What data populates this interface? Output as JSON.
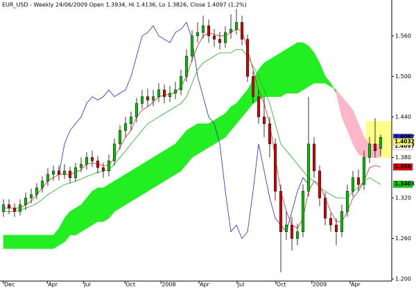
{
  "chart_data": {
    "type": "candlestick",
    "title": "EUR_USD - Weekly 24/06/2009 Open 1.3934, Hi 1.4136, Lo 1.3826, Close 1.4097 (1.2%)",
    "xlim": [
      0,
      68
    ],
    "ylim": [
      1.198,
      1.608
    ],
    "yticks": [
      {
        "value": 1.56,
        "label": "1.560"
      },
      {
        "value": 1.5,
        "label": "1.500"
      },
      {
        "value": 1.44,
        "label": "1.440"
      },
      {
        "value": 1.38,
        "label": "1.380"
      },
      {
        "value": 1.32,
        "label": "1.320"
      },
      {
        "value": 1.26,
        "label": "1.260"
      },
      {
        "value": 1.2,
        "label": "1.200"
      }
    ],
    "xticks": [
      {
        "value": 0,
        "label": "Dec"
      },
      {
        "value": 7.9,
        "label": "Apr"
      },
      {
        "value": 14.4,
        "label": "Jul"
      },
      {
        "value": 21.9,
        "label": "Oct"
      },
      {
        "value": 28.4,
        "label": "2008"
      },
      {
        "value": 35.25,
        "label": "Apr"
      },
      {
        "value": 42.1,
        "label": "Jul"
      },
      {
        "value": 49.1,
        "label": "Oct"
      },
      {
        "value": 55.6,
        "label": "2009"
      },
      {
        "value": 62.5,
        "label": "Apr"
      }
    ],
    "up_color": "#00c800",
    "down_color": "#dd0000",
    "open": [
      1.3,
      1.31,
      1.305,
      1.3,
      1.31,
      1.32,
      1.325,
      1.335,
      1.345,
      1.355,
      1.36,
      1.355,
      1.36,
      1.35,
      1.365,
      1.37,
      1.38,
      1.375,
      1.365,
      1.36,
      1.375,
      1.4,
      1.42,
      1.43,
      1.44,
      1.46,
      1.47,
      1.465,
      1.47,
      1.48,
      1.47,
      1.475,
      1.48,
      1.5,
      1.53,
      1.56,
      1.565,
      1.575,
      1.56,
      1.555,
      1.55,
      1.565,
      1.57,
      1.58,
      1.555,
      1.5,
      1.47,
      1.44,
      1.43,
      1.4,
      1.33,
      1.27,
      1.28,
      1.26,
      1.27,
      1.33,
      1.4,
      1.36,
      1.32,
      1.29,
      1.28,
      1.27,
      1.3,
      1.33,
      1.35,
      1.34,
      1.38,
      1.4,
      1.3934
    ],
    "high": [
      1.318,
      1.318,
      1.312,
      1.318,
      1.328,
      1.334,
      1.342,
      1.352,
      1.364,
      1.368,
      1.368,
      1.37,
      1.366,
      1.372,
      1.38,
      1.388,
      1.39,
      1.382,
      1.372,
      1.384,
      1.408,
      1.428,
      1.44,
      1.448,
      1.468,
      1.48,
      1.482,
      1.48,
      1.49,
      1.488,
      1.486,
      1.492,
      1.51,
      1.54,
      1.568,
      1.58,
      1.59,
      1.584,
      1.57,
      1.566,
      1.574,
      1.592,
      1.6,
      1.59,
      1.562,
      1.508,
      1.48,
      1.47,
      1.44,
      1.408,
      1.34,
      1.3,
      1.292,
      1.282,
      1.34,
      1.47,
      1.41,
      1.368,
      1.328,
      1.298,
      1.29,
      1.31,
      1.34,
      1.36,
      1.362,
      1.39,
      1.41,
      1.438,
      1.4136
    ],
    "low": [
      1.292,
      1.296,
      1.292,
      1.294,
      1.302,
      1.312,
      1.318,
      1.328,
      1.338,
      1.346,
      1.346,
      1.348,
      1.342,
      1.344,
      1.358,
      1.362,
      1.366,
      1.356,
      1.35,
      1.352,
      1.368,
      1.392,
      1.41,
      1.42,
      1.432,
      1.452,
      1.455,
      1.456,
      1.462,
      1.46,
      1.462,
      1.466,
      1.472,
      1.492,
      1.522,
      1.55,
      1.556,
      1.55,
      1.544,
      1.54,
      1.542,
      1.556,
      1.562,
      1.546,
      1.492,
      1.46,
      1.43,
      1.41,
      1.38,
      1.316,
      1.21,
      1.258,
      1.242,
      1.25,
      1.262,
      1.322,
      1.35,
      1.308,
      1.28,
      1.27,
      1.25,
      1.262,
      1.292,
      1.322,
      1.33,
      1.332,
      1.372,
      1.38,
      1.3826
    ],
    "close": [
      1.31,
      1.305,
      1.3,
      1.31,
      1.32,
      1.325,
      1.335,
      1.345,
      1.355,
      1.36,
      1.355,
      1.36,
      1.35,
      1.365,
      1.37,
      1.38,
      1.375,
      1.365,
      1.36,
      1.375,
      1.4,
      1.42,
      1.43,
      1.44,
      1.46,
      1.47,
      1.465,
      1.47,
      1.48,
      1.47,
      1.475,
      1.48,
      1.5,
      1.53,
      1.56,
      1.565,
      1.575,
      1.56,
      1.555,
      1.55,
      1.565,
      1.57,
      1.58,
      1.555,
      1.5,
      1.47,
      1.44,
      1.43,
      1.4,
      1.33,
      1.27,
      1.28,
      1.26,
      1.27,
      1.33,
      1.4,
      1.36,
      1.32,
      1.29,
      1.28,
      1.27,
      1.3,
      1.33,
      1.35,
      1.34,
      1.38,
      1.4,
      1.39,
      1.4097
    ],
    "cloud": {
      "up_color": "#22ee22",
      "down_color": "#ffb6c8",
      "values_a": [
        1.265,
        1.265,
        1.265,
        1.265,
        1.265,
        1.265,
        1.265,
        1.265,
        1.265,
        1.265,
        1.275,
        1.29,
        1.3,
        1.305,
        1.31,
        1.32,
        1.33,
        1.335,
        1.335,
        1.34,
        1.345,
        1.35,
        1.355,
        1.36,
        1.365,
        1.37,
        1.375,
        1.38,
        1.385,
        1.39,
        1.395,
        1.4,
        1.41,
        1.42,
        1.425,
        1.43,
        1.43,
        1.43,
        1.435,
        1.44,
        1.445,
        1.455,
        1.46,
        1.47,
        1.48,
        1.495,
        1.51,
        1.52,
        1.525,
        1.53,
        1.535,
        1.54,
        1.545,
        1.55,
        1.55,
        1.545,
        1.535,
        1.52,
        1.5,
        1.49,
        1.475,
        1.44,
        1.42,
        1.4,
        1.385,
        1.38,
        1.38,
        1.38,
        1.38
      ],
      "values_b": [
        1.245,
        1.245,
        1.245,
        1.245,
        1.245,
        1.245,
        1.245,
        1.245,
        1.245,
        1.245,
        1.25,
        1.255,
        1.265,
        1.265,
        1.27,
        1.275,
        1.28,
        1.285,
        1.285,
        1.29,
        1.3,
        1.305,
        1.31,
        1.315,
        1.32,
        1.325,
        1.33,
        1.335,
        1.34,
        1.345,
        1.35,
        1.355,
        1.36,
        1.37,
        1.38,
        1.385,
        1.39,
        1.395,
        1.4,
        1.405,
        1.41,
        1.42,
        1.43,
        1.44,
        1.45,
        1.46,
        1.465,
        1.47,
        1.47,
        1.47,
        1.47,
        1.475,
        1.475,
        1.475,
        1.48,
        1.485,
        1.49,
        1.49,
        1.49,
        1.485,
        1.48,
        1.47,
        1.46,
        1.45,
        1.43,
        1.41,
        1.4,
        1.4,
        1.4
      ]
    },
    "lines": [
      {
        "color": "#2222cc",
        "values": [
          null,
          null,
          null,
          null,
          null,
          null,
          null,
          null,
          null,
          null,
          1.355,
          1.4,
          1.42,
          1.43,
          1.44,
          1.46,
          1.47,
          1.465,
          1.47,
          1.48,
          1.47,
          1.475,
          1.48,
          1.5,
          1.53,
          1.56,
          1.565,
          1.575,
          1.56,
          1.555,
          1.55,
          1.565,
          1.57,
          1.58,
          1.555,
          1.5,
          1.47,
          1.44,
          1.43,
          1.4,
          1.33,
          1.27,
          1.28,
          1.26,
          1.27,
          1.33,
          1.4,
          1.36,
          1.32,
          1.29,
          1.28,
          1.27,
          1.3,
          1.33,
          1.35,
          1.34,
          null,
          null,
          null,
          null,
          null,
          null,
          null,
          null,
          null,
          null,
          null,
          null,
          null
        ]
      },
      {
        "color": "#dd2222",
        "values": [
          1.305,
          1.305,
          1.305,
          1.305,
          1.31,
          1.315,
          1.325,
          1.335,
          1.345,
          1.35,
          1.355,
          1.355,
          1.355,
          1.358,
          1.362,
          1.37,
          1.372,
          1.37,
          1.368,
          1.368,
          1.38,
          1.395,
          1.41,
          1.42,
          1.44,
          1.45,
          1.455,
          1.462,
          1.47,
          1.472,
          1.474,
          1.476,
          1.485,
          1.5,
          1.525,
          1.545,
          1.56,
          1.565,
          1.562,
          1.56,
          1.56,
          1.565,
          1.57,
          1.568,
          1.54,
          1.51,
          1.48,
          1.46,
          1.43,
          1.38,
          1.33,
          1.3,
          1.28,
          1.275,
          1.29,
          1.33,
          1.345,
          1.34,
          1.32,
          1.3,
          1.285,
          1.285,
          1.3,
          1.32,
          1.33,
          1.345,
          1.365,
          1.368,
          1.366
        ]
      },
      {
        "color": "#22aa22",
        "values": [
          1.3,
          1.3,
          1.3,
          1.302,
          1.305,
          1.308,
          1.312,
          1.318,
          1.325,
          1.33,
          1.335,
          1.34,
          1.342,
          1.345,
          1.348,
          1.352,
          1.355,
          1.358,
          1.36,
          1.362,
          1.37,
          1.38,
          1.39,
          1.4,
          1.41,
          1.42,
          1.43,
          1.435,
          1.44,
          1.445,
          1.45,
          1.455,
          1.46,
          1.47,
          1.49,
          1.51,
          1.52,
          1.525,
          1.53,
          1.535,
          1.535,
          1.535,
          1.54,
          1.54,
          1.53,
          1.515,
          1.5,
          1.48,
          1.46,
          1.43,
          1.4,
          1.39,
          1.38,
          1.37,
          1.36,
          1.35,
          1.345,
          1.335,
          1.33,
          1.325,
          1.32,
          1.32,
          1.32,
          1.33,
          1.335,
          1.345,
          1.35,
          1.345,
          1.34
        ]
      }
    ],
    "price_labels": [
      {
        "value": 1.4097,
        "color": "#2222cc",
        "text_color": "#ffffff"
      },
      {
        "value": 1.4097,
        "color": "#ffffff",
        "text_color": "#000000"
      },
      {
        "value": 1.4032,
        "color": "#ffff66",
        "text_color": "#000000"
      },
      {
        "value": 1.366,
        "color": "#dd0000",
        "text_color": "#ffffff"
      },
      {
        "value": 1.3403,
        "color": "#00cc00",
        "text_color": "#000000"
      }
    ]
  }
}
